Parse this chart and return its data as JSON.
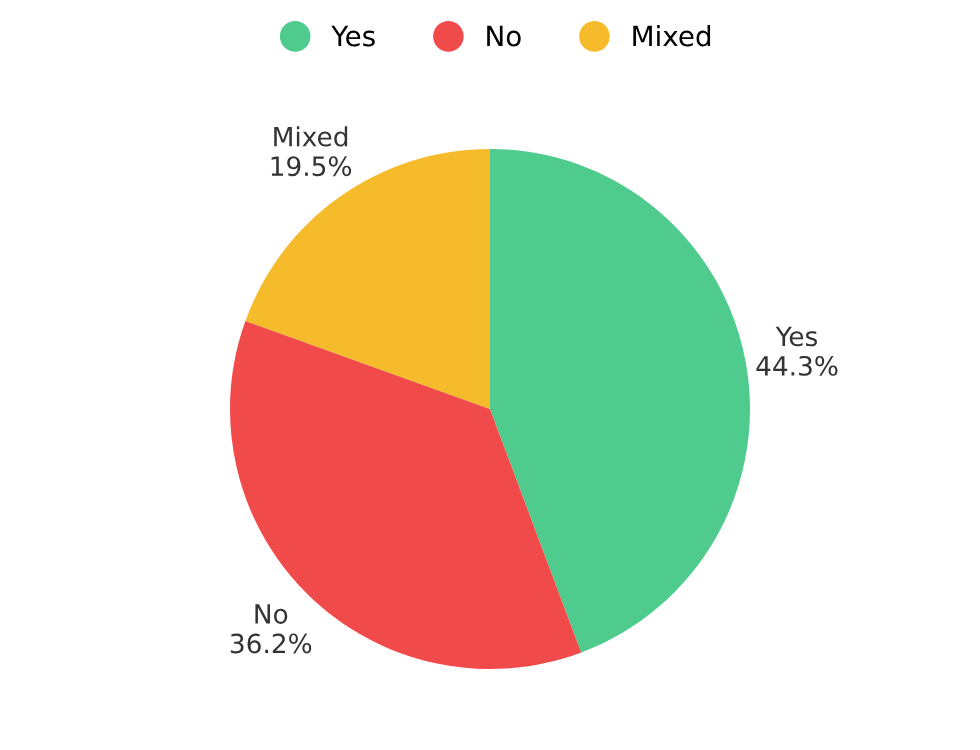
{
  "chart_data": {
    "type": "pie",
    "categories": [
      "Yes",
      "No",
      "Mixed"
    ],
    "values": [
      44.3,
      36.2,
      19.5
    ],
    "value_labels": [
      "44.3%",
      "36.2%",
      "19.5%"
    ],
    "colors": [
      "#4ecb8d",
      "#f04a4a",
      "#f5bb2a"
    ],
    "legend": "top"
  }
}
